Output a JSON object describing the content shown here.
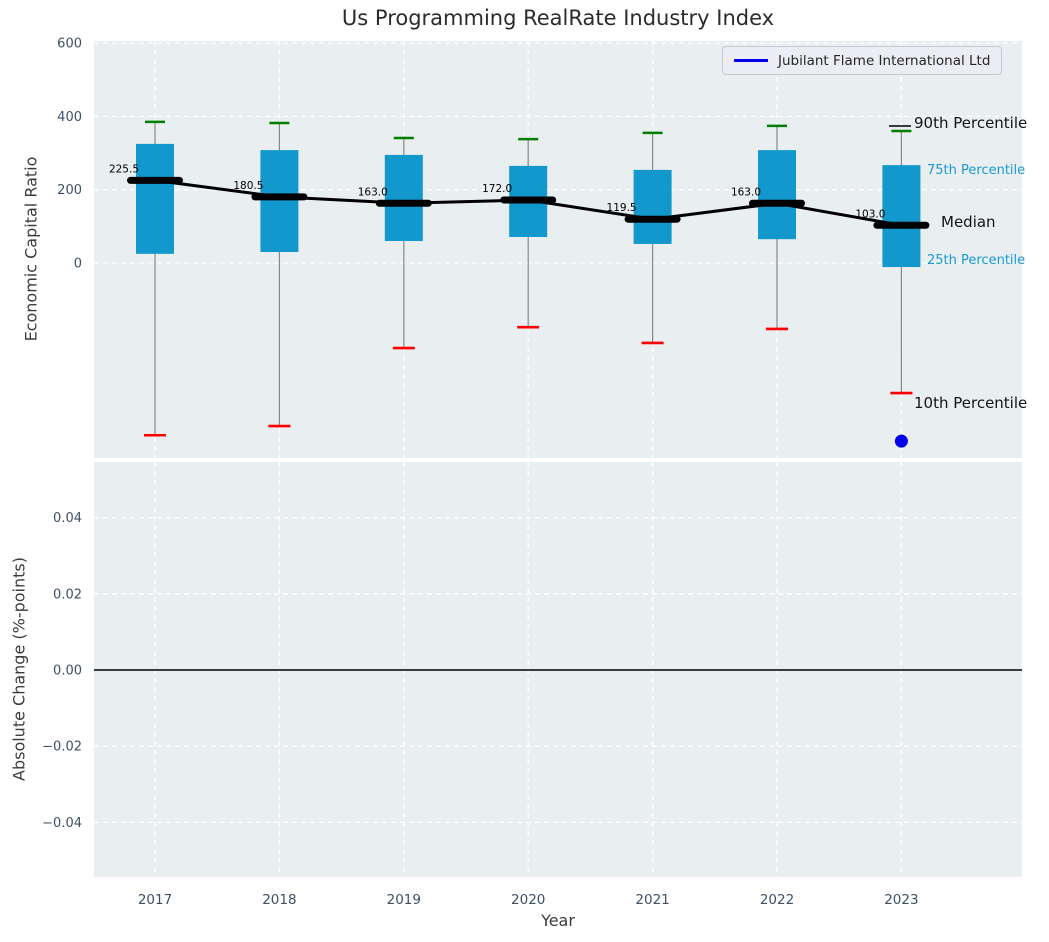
{
  "title": "Us Programming RealRate Industry Index",
  "legend": {
    "label": "Jubilant Flame International Ltd",
    "line_color": "#0000ee"
  },
  "top_panel": {
    "ylabel": "Economic Capital Ratio",
    "ytick_labels": [
      "600",
      "400",
      "200",
      "0"
    ],
    "annotations": {
      "p90": "90th Percentile",
      "p75": "75th Percentile",
      "median": "Median",
      "p25": "25th Percentile",
      "p10": "10th Percentile"
    }
  },
  "bottom_panel": {
    "ylabel": "Absolute Change (%-points)",
    "xlabel": "Year",
    "ytick_labels": [
      "0.04",
      "0.02",
      "0.00",
      "−0.02",
      "−0.04"
    ],
    "xtick_labels": [
      "2017",
      "2018",
      "2019",
      "2020",
      "2021",
      "2022",
      "2023"
    ]
  },
  "colors": {
    "panel_bg": "#e9eef0",
    "grid": "#ffffff",
    "box_fill": "#1398cd",
    "whisker": "#878787",
    "p90_cap": "#008000",
    "p10_cap": "#fe0000",
    "median": "#000000",
    "tick_label": "#3d5166",
    "zero_line": "#000000",
    "company_blue": "#0000ee",
    "blue_label": "#1a99d4"
  },
  "chart_data": [
    {
      "type": "boxplot",
      "title": "Us Programming RealRate Industry Index",
      "ylabel": "Economic Capital Ratio",
      "categories": [
        2017,
        2018,
        2019,
        2020,
        2021,
        2022,
        2023
      ],
      "yticks": [
        600,
        400,
        200,
        0
      ],
      "ylim": [
        -535,
        615
      ],
      "grid": true,
      "legend_position": "upper right",
      "series": [
        {
          "name": "90th Percentile",
          "values": [
            385,
            382,
            341,
            338,
            355,
            374,
            360
          ]
        },
        {
          "name": "75th Percentile",
          "values": [
            325,
            308,
            295,
            265,
            254,
            308,
            267
          ]
        },
        {
          "name": "Median",
          "values": [
            225.5,
            180.5,
            163.0,
            172.0,
            119.5,
            163.0,
            103.0
          ]
        },
        {
          "name": "25th Percentile",
          "values": [
            25,
            30,
            60,
            71,
            52,
            65,
            -11
          ]
        },
        {
          "name": "10th Percentile",
          "values": [
            -470,
            -445,
            -232,
            -175,
            -218,
            -180,
            -355
          ]
        }
      ],
      "median_labels": [
        "225.5",
        "180.5",
        "163.0",
        "172.0",
        "119.5",
        "163.0",
        "103.0"
      ],
      "company_point": {
        "name": "Jubilant Flame International Ltd",
        "year": 2023,
        "value": -486
      }
    },
    {
      "type": "line",
      "ylabel": "Absolute Change (%-points)",
      "xlabel": "Year",
      "categories": [
        2017,
        2018,
        2019,
        2020,
        2021,
        2022,
        2023
      ],
      "yticks": [
        0.04,
        0.02,
        0.0,
        -0.02,
        -0.04
      ],
      "ylim": [
        -0.055,
        0.055
      ],
      "zero_line": 0.0,
      "grid": true,
      "series": []
    }
  ]
}
